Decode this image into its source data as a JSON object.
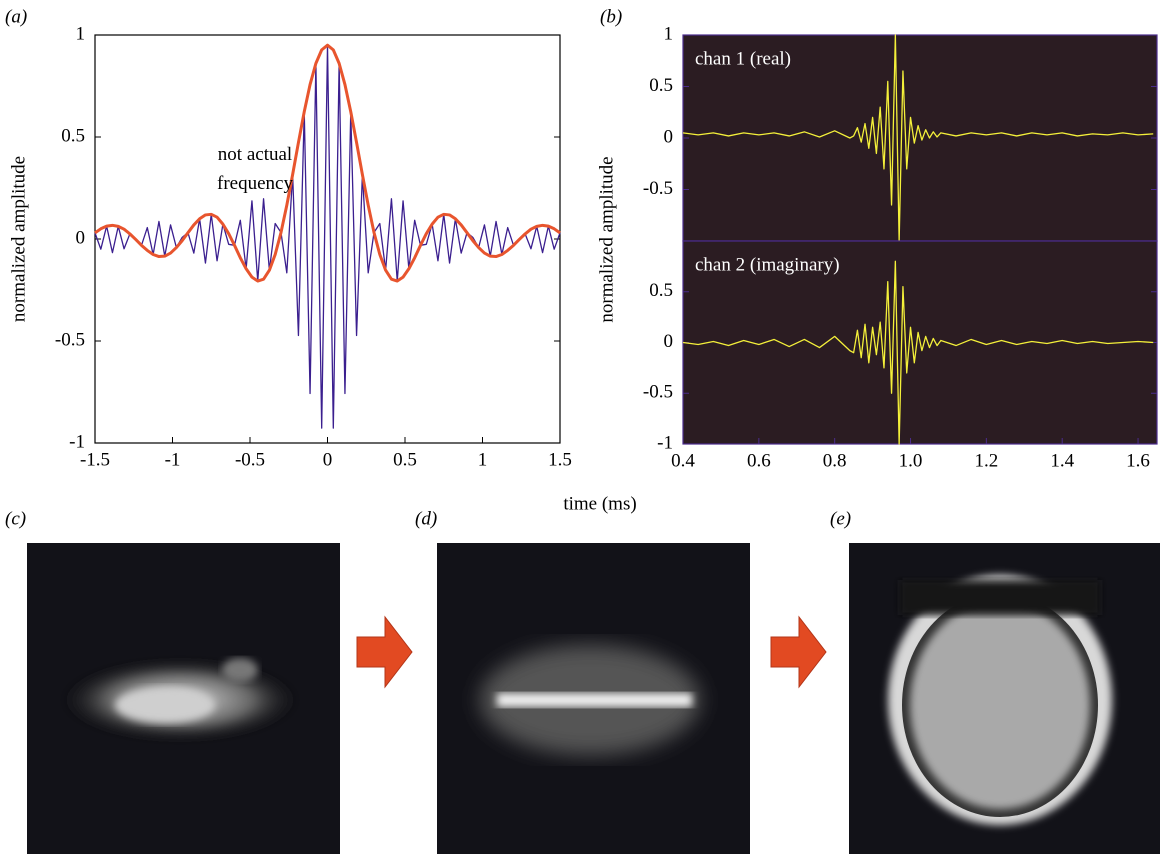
{
  "panel_labels": [
    "(a)",
    "(b)",
    "(c)",
    "(d)",
    "(e)"
  ],
  "shared_x_label": "time (ms)",
  "chart_data": [
    {
      "type": "line",
      "y_label": "normalized amplitude",
      "annotation": "not actual frequency",
      "x": [
        -1.5,
        -1.4625,
        -1.425,
        -1.3875,
        -1.35,
        -1.3125,
        -1.275,
        -1.2375,
        -1.2,
        -1.1625,
        -1.125,
        -1.0875,
        -1.05,
        -1.0125,
        -0.975,
        -0.9375,
        -0.9,
        -0.8625,
        -0.825,
        -0.7875,
        -0.75,
        -0.7125,
        -0.675,
        -0.6375,
        -0.6,
        -0.5625,
        -0.525,
        -0.4875,
        -0.45,
        -0.4125,
        -0.375,
        -0.3375,
        -0.3,
        -0.2625,
        -0.225,
        -0.1875,
        -0.15,
        -0.1125,
        -0.075,
        -0.0375,
        0,
        0.0375,
        0.075,
        0.1125,
        0.15,
        0.1875,
        0.225,
        0.2625,
        0.3,
        0.3375,
        0.375,
        0.4125,
        0.45,
        0.4875,
        0.525,
        0.5625,
        0.6,
        0.6375,
        0.675,
        0.7125,
        0.75,
        0.7875,
        0.825,
        0.8625,
        0.9,
        0.9375,
        0.975,
        1.0125,
        1.05,
        1.0875,
        1.125,
        1.1625,
        1.2,
        1.2375,
        1.275,
        1.3125,
        1.35,
        1.3875,
        1.425,
        1.4625,
        1.5
      ],
      "xlim": [
        -1.5,
        1.5
      ],
      "xticks": [
        -1.5,
        -1,
        -0.5,
        0,
        0.5,
        1,
        1.5
      ],
      "ylim": [
        -1,
        1
      ],
      "yticks": [
        -1,
        -0.5,
        0,
        0.5,
        1
      ],
      "background": "#ffffff",
      "frame_color": "#000000",
      "series": [
        {
          "color": "#3b1f8f",
          "values": [
            0.03,
            -0.05,
            0.063,
            -0.067,
            0.062,
            -0.048,
            0.025,
            0.002,
            -0.031,
            0.056,
            -0.076,
            0.086,
            -0.084,
            0.069,
            -0.042,
            0.008,
            0.031,
            -0.069,
            0.099,
            -0.118,
            0.121,
            -0.107,
            0.073,
            -0.026,
            -0.031,
            0.092,
            -0.146,
            0.187,
            -0.206,
            0.197,
            -0.153,
            0.076,
            0.032,
            -0.166,
            0.316,
            -0.473,
            0.624,
            -0.757,
            0.861,
            -0.927,
            0.95,
            -0.927,
            0.861,
            -0.757,
            0.624,
            -0.473,
            0.316,
            -0.166,
            0.032,
            0.076,
            -0.153,
            0.197,
            -0.206,
            0.187,
            -0.146,
            0.092,
            -0.031,
            -0.026,
            0.073,
            -0.107,
            0.121,
            -0.118,
            0.099,
            -0.069,
            0.031,
            0.008,
            -0.042,
            0.069,
            -0.084,
            0.086,
            -0.076,
            0.056,
            -0.031,
            0.002,
            0.025,
            -0.048,
            0.062,
            -0.067,
            0.063,
            -0.05,
            0.03
          ]
        },
        {
          "color": "#e8552e",
          "values": [
            0.03,
            0.05,
            0.063,
            0.067,
            0.062,
            0.048,
            0.025,
            -0.002,
            -0.031,
            -0.056,
            -0.076,
            -0.086,
            -0.084,
            -0.069,
            -0.042,
            -0.008,
            0.031,
            0.069,
            0.099,
            0.118,
            0.121,
            0.107,
            0.073,
            0.026,
            -0.031,
            -0.092,
            -0.146,
            -0.187,
            -0.206,
            -0.197,
            -0.153,
            -0.076,
            0.032,
            0.166,
            0.316,
            0.473,
            0.624,
            0.757,
            0.861,
            0.927,
            0.95,
            0.927,
            0.861,
            0.757,
            0.624,
            0.473,
            0.316,
            0.166,
            0.032,
            -0.076,
            -0.153,
            -0.197,
            -0.206,
            -0.187,
            -0.146,
            -0.092,
            -0.031,
            0.026,
            0.073,
            0.107,
            0.121,
            0.118,
            0.099,
            0.069,
            0.031,
            -0.008,
            -0.042,
            -0.069,
            -0.084,
            -0.086,
            -0.076,
            -0.056,
            -0.031,
            -0.002,
            0.025,
            0.048,
            0.062,
            0.067,
            0.063,
            0.05,
            0.03
          ]
        }
      ]
    },
    {
      "type": "line",
      "y_label": "normalized amplitude",
      "annotation": "chan 1 (real)",
      "x": [
        0.4,
        0.44,
        0.48,
        0.52,
        0.56,
        0.6,
        0.64,
        0.68,
        0.72,
        0.76,
        0.8,
        0.84,
        0.85,
        0.86,
        0.87,
        0.88,
        0.89,
        0.9,
        0.91,
        0.92,
        0.93,
        0.94,
        0.95,
        0.96,
        0.97,
        0.98,
        0.99,
        1.0,
        1.01,
        1.02,
        1.03,
        1.04,
        1.05,
        1.06,
        1.07,
        1.08,
        1.12,
        1.16,
        1.2,
        1.24,
        1.28,
        1.32,
        1.36,
        1.4,
        1.44,
        1.48,
        1.52,
        1.56,
        1.6,
        1.64
      ],
      "xlim": [
        0.4,
        1.65
      ],
      "ylim": [
        -1,
        1
      ],
      "yticks": [
        -0.5,
        0,
        0.5,
        1
      ],
      "background": "#2b1c22",
      "frame_color": "#4b2c8c",
      "series": [
        {
          "color": "#f4f03a",
          "values": [
            0.05,
            0.03,
            0.05,
            0.02,
            0.05,
            0.03,
            0.05,
            0.02,
            0.06,
            0.01,
            0.07,
            0.0,
            0.02,
            0.1,
            -0.04,
            0.14,
            -0.1,
            0.2,
            -0.15,
            0.3,
            -0.3,
            0.55,
            -0.65,
            1.0,
            -1.0,
            0.65,
            -0.3,
            0.2,
            -0.05,
            0.12,
            -0.02,
            0.08,
            0.0,
            0.06,
            0.01,
            0.05,
            0.02,
            0.05,
            0.03,
            0.05,
            0.02,
            0.05,
            0.03,
            0.05,
            0.02,
            0.04,
            0.03,
            0.05,
            0.03,
            0.04
          ]
        }
      ]
    },
    {
      "type": "line",
      "annotation": "chan 2 (imaginary)",
      "x": [
        0.4,
        0.44,
        0.48,
        0.52,
        0.56,
        0.6,
        0.64,
        0.68,
        0.72,
        0.76,
        0.8,
        0.84,
        0.85,
        0.86,
        0.87,
        0.88,
        0.89,
        0.9,
        0.91,
        0.92,
        0.93,
        0.94,
        0.95,
        0.96,
        0.97,
        0.98,
        0.99,
        1.0,
        1.01,
        1.02,
        1.03,
        1.04,
        1.05,
        1.06,
        1.07,
        1.08,
        1.12,
        1.16,
        1.2,
        1.24,
        1.28,
        1.32,
        1.36,
        1.4,
        1.44,
        1.48,
        1.52,
        1.56,
        1.6,
        1.64
      ],
      "xlim": [
        0.4,
        1.65
      ],
      "xticks": [
        0.4,
        0.6,
        0.8,
        {
          "value": 1,
          "label": "1.0"
        },
        1.2,
        1.4,
        1.6
      ],
      "ylim": [
        -1,
        1
      ],
      "yticks": [
        -1,
        -0.5,
        0,
        0.5
      ],
      "background": "#2b1c22",
      "frame_color": "#4b2c8c",
      "series": [
        {
          "color": "#f4f03a",
          "values": [
            0.0,
            -0.02,
            0.01,
            -0.03,
            0.02,
            -0.02,
            0.03,
            -0.04,
            0.03,
            -0.05,
            0.06,
            -0.08,
            -0.1,
            0.12,
            -0.15,
            0.18,
            -0.2,
            0.15,
            -0.12,
            0.2,
            -0.25,
            0.6,
            -0.5,
            0.8,
            -1.0,
            0.55,
            -0.3,
            0.15,
            -0.2,
            0.1,
            -0.08,
            0.06,
            -0.05,
            0.04,
            -0.03,
            0.02,
            -0.03,
            0.03,
            -0.02,
            0.02,
            -0.02,
            0.01,
            -0.01,
            0.02,
            -0.01,
            0.01,
            -0.01,
            0.0,
            0.01,
            0.0
          ]
        }
      ]
    }
  ]
}
